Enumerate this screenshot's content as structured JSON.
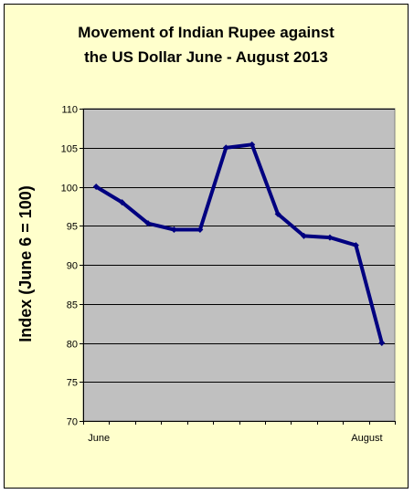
{
  "chart_data": {
    "type": "line",
    "title_line1": "Movement of Indian Rupee against",
    "title_line2": "the US Dollar June - August 2013",
    "xlabel": "",
    "ylabel": "Index (June 6 = 100)",
    "ylim": [
      70,
      110
    ],
    "yticks": [
      70,
      75,
      80,
      85,
      90,
      95,
      100,
      105,
      110
    ],
    "grid": true,
    "xtick_labels": [
      "June",
      "August"
    ],
    "series": [
      {
        "color": "#000080",
        "values": [
          100,
          98,
          95.3,
          94.5,
          94.5,
          105,
          105.4,
          96.5,
          93.7,
          93.5,
          92.5,
          80
        ]
      }
    ],
    "colors": {
      "frame_background": "#ffffcc",
      "plot_background": "#c0c0c0",
      "line": "#000080"
    }
  }
}
